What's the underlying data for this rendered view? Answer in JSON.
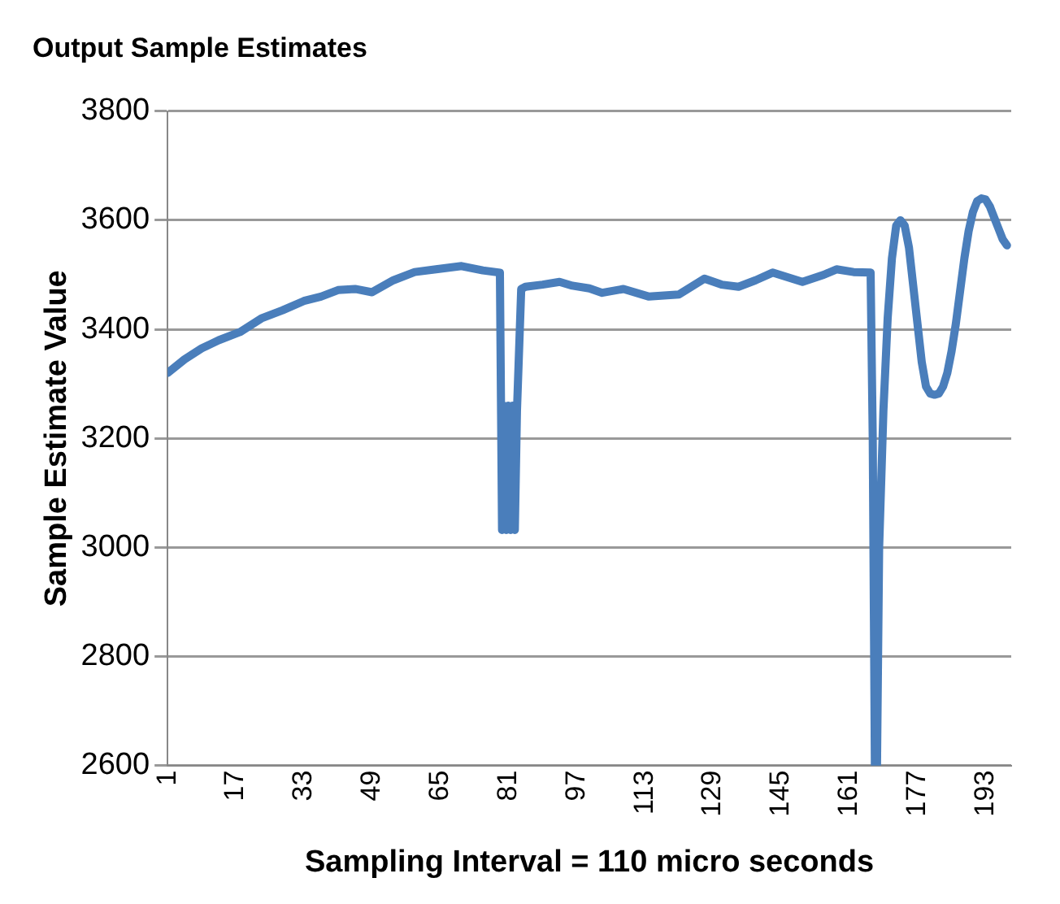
{
  "chart_data": {
    "type": "line",
    "title": "Output Sample Estimates",
    "xlabel": "Sampling Interval = 110 micro seconds",
    "ylabel": "Sample Estimate Value",
    "x": [
      1,
      5,
      9,
      13,
      18,
      23,
      28,
      33,
      37,
      41,
      45,
      49,
      54,
      59,
      64,
      70,
      75,
      79,
      79.5,
      80,
      80.5,
      81,
      81.5,
      82,
      82.5,
      83,
      84,
      85,
      89,
      93,
      96,
      100,
      103,
      108,
      114,
      121,
      127,
      131,
      135,
      139,
      143,
      150,
      155,
      158,
      162,
      166,
      166.5,
      167,
      167.5,
      168,
      169,
      170,
      171,
      172,
      173,
      174,
      175,
      176,
      177,
      178,
      179,
      180,
      181,
      182,
      183,
      184,
      185,
      186,
      187,
      188,
      189,
      190,
      191,
      192,
      193,
      194,
      195,
      196,
      197,
      198
    ],
    "series": [
      {
        "color": "#4a7ebb",
        "values": [
          3320,
          3345,
          3365,
          3380,
          3395,
          3420,
          3435,
          3452,
          3460,
          3472,
          3474,
          3468,
          3490,
          3505,
          3510,
          3516,
          3508,
          3504,
          3032,
          3260,
          3032,
          3260,
          3032,
          3260,
          3032,
          3250,
          3474,
          3478,
          3482,
          3487,
          3480,
          3475,
          3467,
          3474,
          3460,
          3464,
          3493,
          3482,
          3478,
          3490,
          3504,
          3487,
          3500,
          3510,
          3505,
          3504,
          3200,
          2600,
          2600,
          3000,
          3250,
          3420,
          3530,
          3590,
          3600,
          3590,
          3550,
          3480,
          3410,
          3340,
          3295,
          3282,
          3280,
          3282,
          3295,
          3320,
          3360,
          3410,
          3470,
          3530,
          3580,
          3615,
          3635,
          3640,
          3638,
          3625,
          3605,
          3585,
          3565,
          3554
        ]
      }
    ],
    "xlim": [
      1,
      199
    ],
    "ylim": [
      2600,
      3800
    ],
    "xticks": [
      1,
      17,
      33,
      49,
      65,
      81,
      97,
      113,
      129,
      145,
      161,
      177,
      193
    ],
    "yticks": [
      2600,
      2800,
      3000,
      3200,
      3400,
      3600,
      3800
    ],
    "grid": "y",
    "legend": false,
    "marker": "none",
    "line_style": "solid"
  }
}
